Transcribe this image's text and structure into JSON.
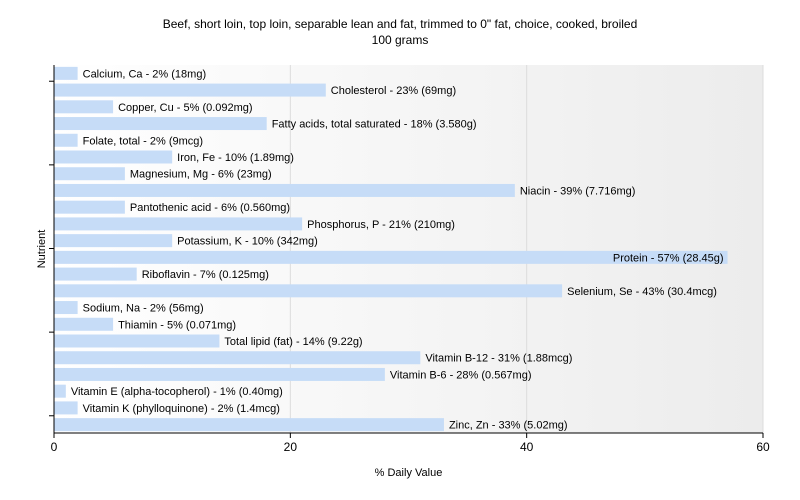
{
  "chart_data": {
    "type": "bar",
    "orientation": "horizontal",
    "title": "Beef, short loin, top loin, separable lean and fat, trimmed to 0\" fat, choice, cooked, broiled",
    "subtitle": "100 grams",
    "xlabel": "% Daily Value",
    "ylabel": "Nutrient",
    "xlim": [
      0,
      60
    ],
    "xticks": [
      0,
      20,
      40,
      60
    ],
    "grid": true,
    "bar_color": "#c6dcf7",
    "categories": [
      "Calcium, Ca",
      "Cholesterol",
      "Copper, Cu",
      "Fatty acids, total saturated",
      "Folate, total",
      "Iron, Fe",
      "Magnesium, Mg",
      "Niacin",
      "Pantothenic acid",
      "Phosphorus, P",
      "Potassium, K",
      "Protein",
      "Riboflavin",
      "Selenium, Se",
      "Sodium, Na",
      "Thiamin",
      "Total lipid (fat)",
      "Vitamin B-12",
      "Vitamin B-6",
      "Vitamin E (alpha-tocopherol)",
      "Vitamin K (phylloquinone)",
      "Zinc, Zn"
    ],
    "values": [
      2,
      23,
      5,
      18,
      2,
      10,
      6,
      39,
      6,
      21,
      10,
      57,
      7,
      43,
      2,
      5,
      14,
      31,
      28,
      1,
      2,
      33
    ],
    "labels": [
      "Calcium, Ca - 2% (18mg)",
      "Cholesterol - 23% (69mg)",
      "Copper, Cu - 5% (0.092mg)",
      "Fatty acids, total saturated - 18% (3.580g)",
      "Folate, total - 2% (9mcg)",
      "Iron, Fe - 10% (1.89mg)",
      "Magnesium, Mg - 6% (23mg)",
      "Niacin - 39% (7.716mg)",
      "Pantothenic acid - 6% (0.560mg)",
      "Phosphorus, P - 21% (210mg)",
      "Potassium, K - 10% (342mg)",
      "Protein - 57% (28.45g)",
      "Riboflavin - 7% (0.125mg)",
      "Selenium, Se - 43% (30.4mcg)",
      "Sodium, Na - 2% (56mg)",
      "Thiamin - 5% (0.071mg)",
      "Total lipid (fat) - 14% (9.22g)",
      "Vitamin B-12 - 31% (1.88mcg)",
      "Vitamin B-6 - 28% (0.567mg)",
      "Vitamin E (alpha-tocopherol) - 1% (0.40mg)",
      "Vitamin K (phylloquinone) - 2% (1.4mcg)",
      "Zinc, Zn - 33% (5.02mg)"
    ]
  }
}
